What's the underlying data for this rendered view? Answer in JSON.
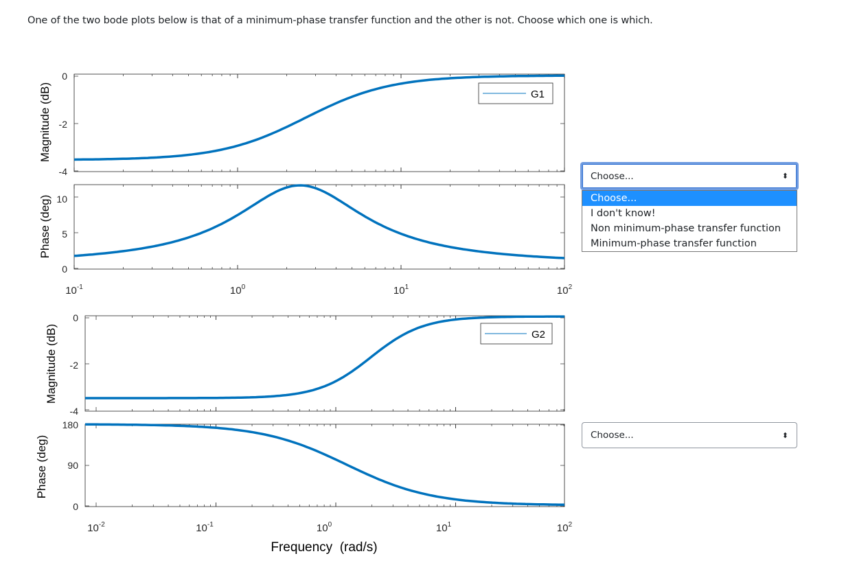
{
  "question": {
    "text": "One of the two bode plots below is that of a minimum-phase transfer function and the other is not. Choose which one is which."
  },
  "figure1": {
    "legend": "G1",
    "mag_ylabel": "Magnitude (dB)",
    "phase_ylabel": "Phase (deg)",
    "mag_ticks": [
      "0",
      "-2",
      "-4"
    ],
    "phase_ticks": [
      "10",
      "5",
      "0"
    ],
    "x_ticks": [
      {
        "base": "10",
        "exp": "-1"
      },
      {
        "base": "10",
        "exp": "0"
      },
      {
        "base": "10",
        "exp": "1"
      },
      {
        "base": "10",
        "exp": "2"
      }
    ],
    "line_color": "#0072bd"
  },
  "figure2": {
    "legend": "G2",
    "mag_ylabel": "Magnitude (dB)",
    "phase_ylabel": "Phase (deg)",
    "mag_ticks": [
      "0",
      "-2",
      "-4"
    ],
    "phase_ticks": [
      "180",
      "90",
      "0"
    ],
    "x_ticks": [
      {
        "base": "10",
        "exp": "-2"
      },
      {
        "base": "10",
        "exp": "-1"
      },
      {
        "base": "10",
        "exp": "0"
      },
      {
        "base": "10",
        "exp": "1"
      },
      {
        "base": "10",
        "exp": "2"
      }
    ],
    "xlabel": "Frequency  (rad/s)",
    "line_color": "#0072bd"
  },
  "select1": {
    "value": "Choose...",
    "arrows": "⬍",
    "open": true,
    "options": [
      "Choose...",
      "I don't know!",
      "Non minimum-phase transfer function",
      "Minimum-phase transfer function"
    ],
    "highlighted_index": 0
  },
  "select2": {
    "value": "Choose...",
    "arrows": "⬍"
  },
  "colors": {
    "accent": "#1e90ff",
    "focus_ring": "#6f9be0",
    "plot_line": "#0072bd"
  }
}
